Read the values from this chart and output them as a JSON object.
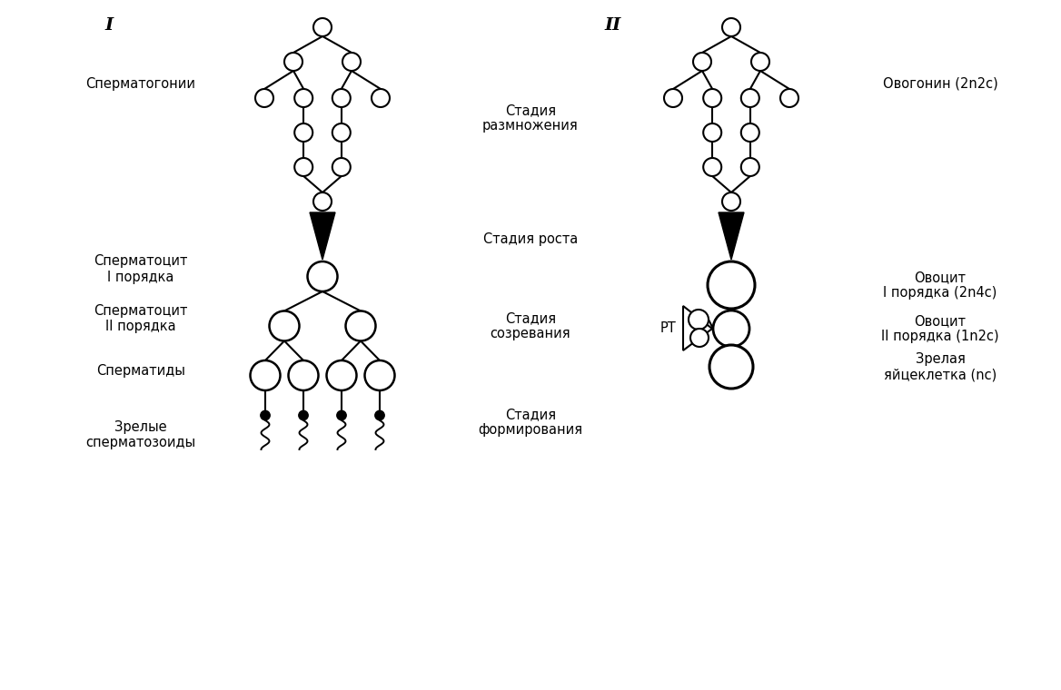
{
  "bg_color": "#ffffff",
  "left_label_I": "I",
  "right_label_II": "II",
  "stage_multiplication": "Стадия\nразмножения",
  "stage_growth": "Стадия роста",
  "stage_maturation": "Стадия\nсозревания",
  "stage_formation": "Стадия\nформирования",
  "label_spermatogonia": "Сперматогонии",
  "label_sperm1": "Сперматоцит\nI порядка",
  "label_sperm2": "Сперматоцит\nII порядка",
  "label_spermatids": "Сперматиды",
  "label_spermatozoa": "Зрелые\nсперматозоиды",
  "label_oogonia": "Овогонин (2n2c)",
  "label_oocyte1": "Овоцит\nI порядка (2n4c)",
  "label_oocyte2": "Овоцит\nII порядка (1n2c)",
  "label_egg": "Зрелая\nяйцеклетка (nc)",
  "label_RT": "РТ"
}
